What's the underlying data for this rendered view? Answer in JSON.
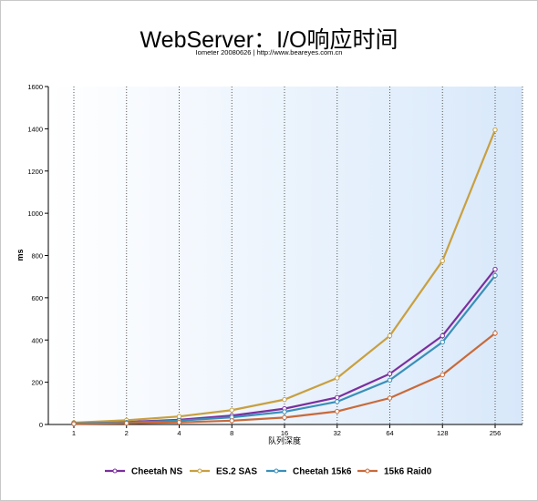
{
  "chart_data": {
    "type": "line",
    "title": "WebServer：I/O响应时间",
    "subtitle": "Iometer 20080626 | http://www.beareyes.com.cn",
    "xlabel": "队列深度",
    "ylabel": "ms",
    "categories": [
      "1",
      "2",
      "4",
      "8",
      "16",
      "32",
      "64",
      "128",
      "256"
    ],
    "ylim": [
      0,
      1600
    ],
    "yticks": [
      0,
      200,
      400,
      600,
      800,
      1000,
      1200,
      1400,
      1600
    ],
    "grid": "vertical dotted",
    "legend_position": "bottom",
    "series": [
      {
        "name": "Cheetah NS",
        "color": "#7b2f9e",
        "values": [
          6,
          12,
          22,
          42,
          75,
          128,
          240,
          420,
          735
        ]
      },
      {
        "name": "ES.2 SAS",
        "color": "#c8a040",
        "values": [
          9,
          20,
          38,
          68,
          118,
          220,
          420,
          775,
          1395
        ]
      },
      {
        "name": "Cheetah 15k6",
        "color": "#3a8fb8",
        "values": [
          5,
          10,
          18,
          34,
          60,
          108,
          210,
          390,
          705
        ]
      },
      {
        "name": "15k6 Raid0",
        "color": "#c86a3a",
        "values": [
          3,
          6,
          10,
          18,
          33,
          62,
          125,
          235,
          432
        ]
      }
    ]
  }
}
